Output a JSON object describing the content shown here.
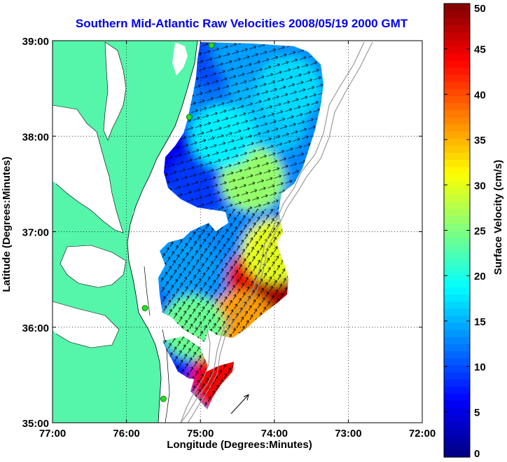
{
  "chart_data": {
    "type": "heatmap",
    "title": "Southern Mid-Atlantic Raw Velocities 2008/05/19 2000 GMT",
    "xlabel": "Longitude (Degrees:Minutes)",
    "ylabel": "Latitude (Degrees:Minutes)",
    "colorbar_label": "Surface Velocity (cm/s)",
    "xlim": [
      -77,
      -72
    ],
    "ylim": [
      35,
      39
    ],
    "clim": [
      0,
      50
    ],
    "x_ticks": [
      {
        "value": -77,
        "label": "77:00"
      },
      {
        "value": -76,
        "label": "76:00"
      },
      {
        "value": -75,
        "label": "75:00"
      },
      {
        "value": -74,
        "label": "74:00"
      },
      {
        "value": -73,
        "label": "73:00"
      },
      {
        "value": -72,
        "label": "72:00"
      }
    ],
    "y_ticks": [
      {
        "value": 35,
        "label": "35:00"
      },
      {
        "value": 36,
        "label": "36:00"
      },
      {
        "value": 37,
        "label": "37:00"
      },
      {
        "value": 38,
        "label": "38:00"
      },
      {
        "value": 39,
        "label": "39:00"
      }
    ],
    "colorbar_ticks": [
      0,
      5,
      10,
      15,
      20,
      25,
      30,
      35,
      40,
      45,
      50
    ],
    "grid": true,
    "colormap": "jet",
    "land_color": "#55f5aa",
    "title_color": "#0000ee",
    "speed_field": [
      {
        "lon": -74.6,
        "lat": 38.45,
        "v": 12
      },
      {
        "lon": -74.2,
        "lat": 38.55,
        "v": 15
      },
      {
        "lon": -74.9,
        "lat": 38.85,
        "v": 10
      },
      {
        "lon": -74.4,
        "lat": 38.9,
        "v": 14
      },
      {
        "lon": -74.0,
        "lat": 38.15,
        "v": 16
      },
      {
        "lon": -73.8,
        "lat": 38.5,
        "v": 17
      },
      {
        "lon": -75.3,
        "lat": 37.75,
        "v": 6
      },
      {
        "lon": -75.0,
        "lat": 37.5,
        "v": 9
      },
      {
        "lon": -74.3,
        "lat": 37.55,
        "v": 26
      },
      {
        "lon": -74.7,
        "lat": 38.0,
        "v": 18
      },
      {
        "lon": -74.2,
        "lat": 36.5,
        "v": 45
      },
      {
        "lon": -74.0,
        "lat": 36.2,
        "v": 48
      },
      {
        "lon": -74.45,
        "lat": 36.05,
        "v": 36
      },
      {
        "lon": -74.0,
        "lat": 36.8,
        "v": 30
      },
      {
        "lon": -75.4,
        "lat": 36.4,
        "v": 11
      },
      {
        "lon": -75.2,
        "lat": 36.6,
        "v": 14
      },
      {
        "lon": -75.1,
        "lat": 35.65,
        "v": 8
      },
      {
        "lon": -74.7,
        "lat": 35.45,
        "v": 44
      },
      {
        "lon": -75.1,
        "lat": 36.0,
        "v": 24
      }
    ],
    "hf_radar_sites": [
      {
        "lon": -74.85,
        "lat": 38.95
      },
      {
        "lon": -75.15,
        "lat": 38.2
      },
      {
        "lon": -75.75,
        "lat": 36.2
      },
      {
        "lon": -75.5,
        "lat": 35.25
      }
    ]
  }
}
